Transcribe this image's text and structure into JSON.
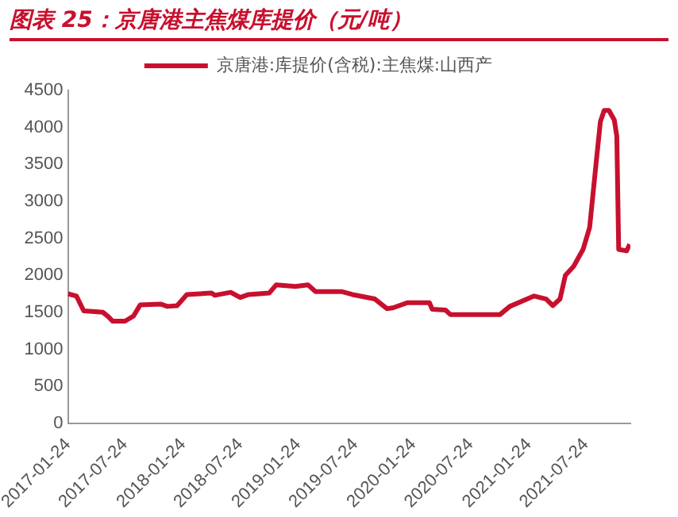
{
  "chart_data": {
    "type": "line",
    "title": "图表 25：京唐港主焦煤库提价（元/吨）",
    "x": [
      "2017-01-24",
      "2017-02-20",
      "2017-03-15",
      "2017-05-15",
      "2017-06-01",
      "2017-06-15",
      "2017-07-24",
      "2017-08-20",
      "2017-09-10",
      "2017-11-15",
      "2017-12-05",
      "2018-01-05",
      "2018-02-05",
      "2018-04-24",
      "2018-05-05",
      "2018-06-24",
      "2018-07-24",
      "2018-08-20",
      "2018-10-24",
      "2018-11-15",
      "2019-01-15",
      "2019-02-24",
      "2019-03-20",
      "2019-06-10",
      "2019-07-15",
      "2019-09-24",
      "2019-11-01",
      "2019-11-20",
      "2020-01-05",
      "2020-03-15",
      "2020-03-24",
      "2020-05-05",
      "2020-05-20",
      "2020-10-25",
      "2020-11-25",
      "2021-02-10",
      "2021-03-20",
      "2021-04-10",
      "2021-05-03",
      "2021-05-20",
      "2021-06-15",
      "2021-07-15",
      "2021-08-05",
      "2021-08-25",
      "2021-09-08",
      "2021-09-20",
      "2021-10-05",
      "2021-10-22",
      "2021-10-30",
      "2021-11-05",
      "2021-11-30",
      "2021-12-10"
    ],
    "series": [
      {
        "name": "京唐港:库提价(含税):主焦煤:山西产",
        "color": "#c8102e",
        "values": [
          1750,
          1720,
          1520,
          1500,
          1440,
          1380,
          1380,
          1450,
          1600,
          1610,
          1580,
          1590,
          1740,
          1760,
          1730,
          1770,
          1700,
          1740,
          1760,
          1870,
          1850,
          1870,
          1780,
          1780,
          1740,
          1680,
          1550,
          1560,
          1630,
          1630,
          1540,
          1530,
          1470,
          1470,
          1580,
          1720,
          1680,
          1590,
          1680,
          2000,
          2120,
          2350,
          2650,
          3500,
          4080,
          4230,
          4230,
          4100,
          3880,
          2350,
          2330,
          2420
        ]
      }
    ],
    "xlim": [
      "2017-01-24",
      "2021-12-12"
    ],
    "xticks": [
      "2017-01-24",
      "2017-07-24",
      "2018-01-24",
      "2018-07-24",
      "2019-01-24",
      "2019-07-24",
      "2020-01-24",
      "2020-07-24",
      "2021-01-24",
      "2021-07-24"
    ],
    "ylim": [
      0,
      4500
    ],
    "yticks": [
      0,
      500,
      1000,
      1500,
      2000,
      2500,
      3000,
      3500,
      4000,
      4500
    ],
    "grid": false,
    "legend": "top",
    "marker": "none",
    "line_style": "solid"
  }
}
